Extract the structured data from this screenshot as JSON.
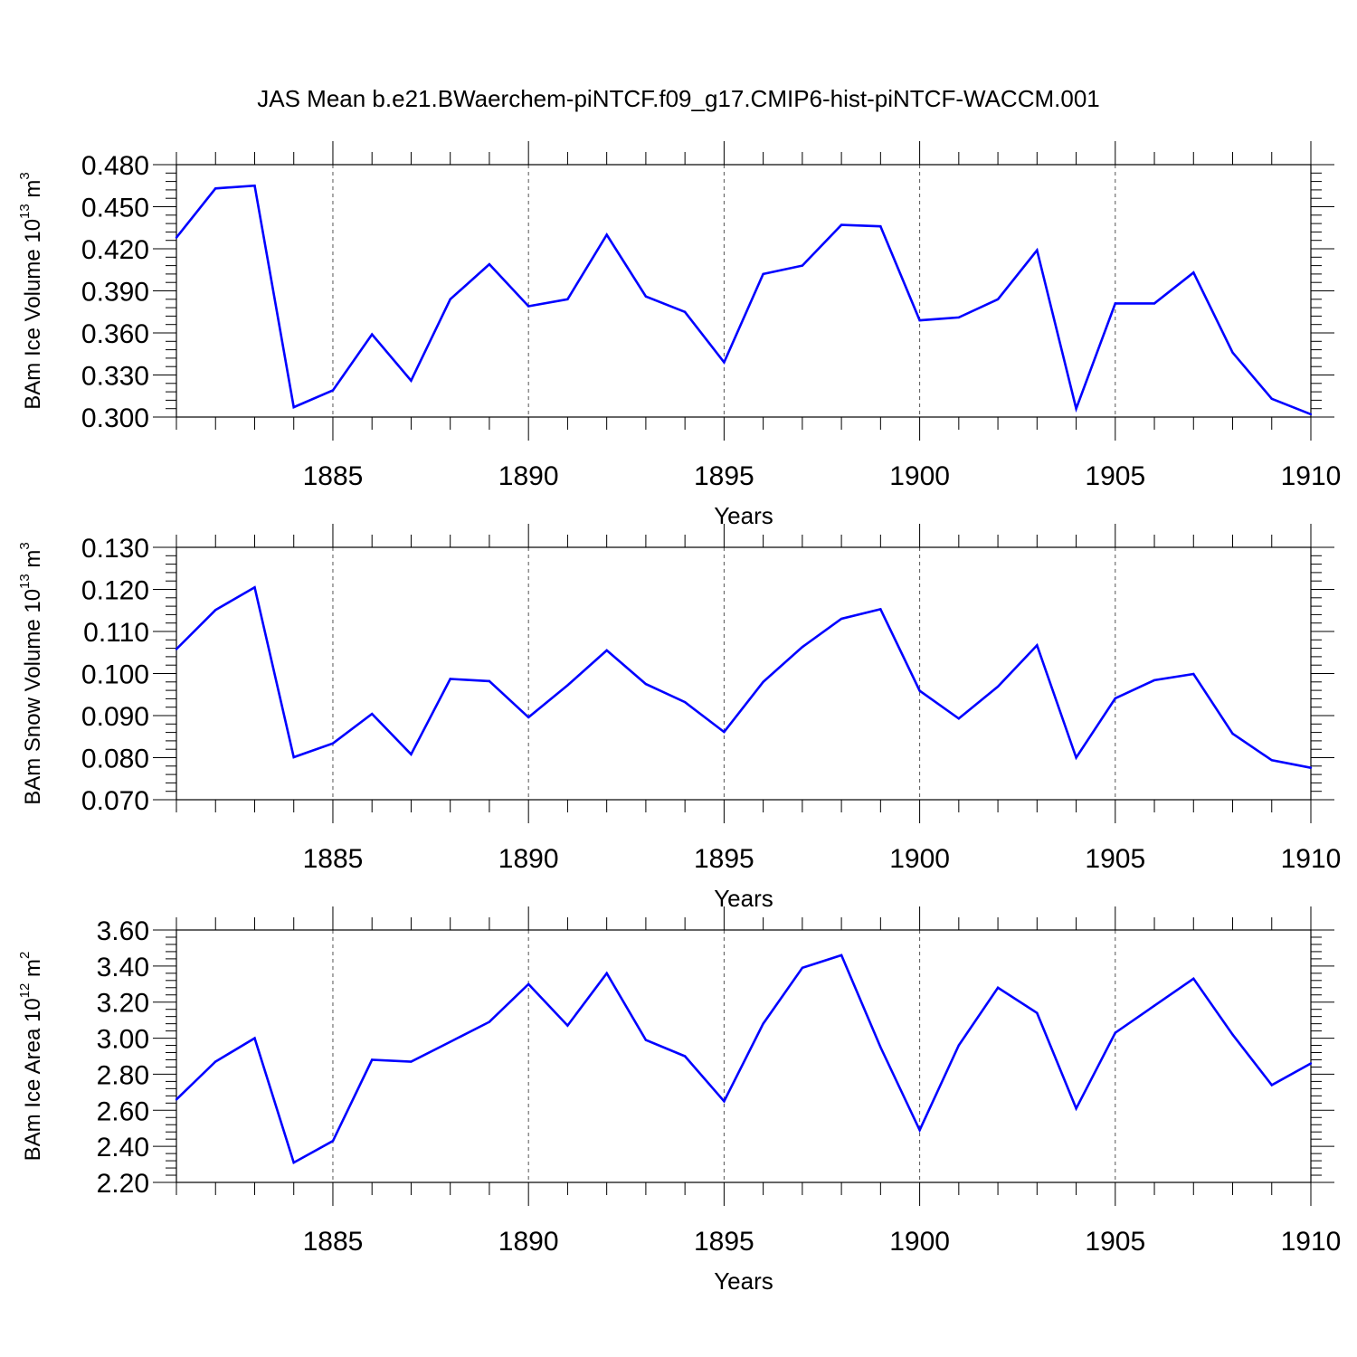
{
  "title": "JAS Mean b.e21.BWaerchem-piNTCF.f09_g17.CMIP6-hist-piNTCF-WACCM.001",
  "style": {
    "line_color": "#0000ff",
    "axis_color": "#000000",
    "grid_color": "#555555"
  },
  "chart_data": [
    {
      "type": "line",
      "name": "ice-volume",
      "title": "JAS Mean b.e21.BWaerchem-piNTCF.f09_g17.CMIP6-hist-piNTCF-WACCM.001",
      "xlabel": "Years",
      "ylabel": {
        "text": "BAm Ice Volume 10",
        "exp": "13",
        "unit": " m",
        "unit_exp": "3"
      },
      "xlim": [
        1881,
        1910
      ],
      "ylim": [
        0.3,
        0.48
      ],
      "yticks": [
        "0.300",
        "0.330",
        "0.360",
        "0.390",
        "0.420",
        "0.450",
        "0.480"
      ],
      "ytick_values": [
        0.3,
        0.33,
        0.36,
        0.39,
        0.42,
        0.45,
        0.48
      ],
      "xticks": [
        1885,
        1890,
        1895,
        1900,
        1905,
        1910
      ],
      "x": [
        1881,
        1882,
        1883,
        1884,
        1885,
        1886,
        1887,
        1888,
        1889,
        1890,
        1891,
        1892,
        1893,
        1894,
        1895,
        1896,
        1897,
        1898,
        1899,
        1900,
        1901,
        1902,
        1903,
        1904,
        1905,
        1906,
        1907,
        1908,
        1909,
        1910
      ],
      "values": [
        0.428,
        0.463,
        0.465,
        0.307,
        0.319,
        0.359,
        0.326,
        0.384,
        0.409,
        0.379,
        0.384,
        0.43,
        0.386,
        0.375,
        0.339,
        0.402,
        0.408,
        0.437,
        0.436,
        0.369,
        0.371,
        0.384,
        0.419,
        0.306,
        0.381,
        0.381,
        0.403,
        0.346,
        0.313,
        0.302
      ]
    },
    {
      "type": "line",
      "name": "snow-volume",
      "xlabel": "Years",
      "ylabel": {
        "text": "BAm Snow Volume 10",
        "exp": "13",
        "unit": " m",
        "unit_exp": "3"
      },
      "xlim": [
        1881,
        1910
      ],
      "ylim": [
        0.07,
        0.13
      ],
      "yticks": [
        "0.070",
        "0.080",
        "0.090",
        "0.100",
        "0.110",
        "0.120",
        "0.130"
      ],
      "ytick_values": [
        0.07,
        0.08,
        0.09,
        0.1,
        0.11,
        0.12,
        0.13
      ],
      "xticks": [
        1885,
        1890,
        1895,
        1900,
        1905,
        1910
      ],
      "x": [
        1881,
        1882,
        1883,
        1884,
        1885,
        1886,
        1887,
        1888,
        1889,
        1890,
        1891,
        1892,
        1893,
        1894,
        1895,
        1896,
        1897,
        1898,
        1899,
        1900,
        1901,
        1902,
        1903,
        1904,
        1905,
        1906,
        1907,
        1908,
        1909,
        1910
      ],
      "values": [
        0.1058,
        0.1151,
        0.1205,
        0.0801,
        0.0834,
        0.0904,
        0.0808,
        0.0987,
        0.0982,
        0.0896,
        0.0972,
        0.1055,
        0.0975,
        0.0932,
        0.0861,
        0.098,
        0.1063,
        0.113,
        0.1153,
        0.0959,
        0.0893,
        0.0969,
        0.1067,
        0.08,
        0.0941,
        0.0984,
        0.0999,
        0.0857,
        0.0794,
        0.0776
      ]
    },
    {
      "type": "line",
      "name": "ice-area",
      "xlabel": "Years",
      "ylabel": {
        "text": "BAm Ice Area 10",
        "exp": "12",
        "unit": " m",
        "unit_exp": "2"
      },
      "xlim": [
        1881,
        1910
      ],
      "ylim": [
        2.2,
        3.6
      ],
      "yticks": [
        "2.20",
        "2.40",
        "2.60",
        "2.80",
        "3.00",
        "3.20",
        "3.40",
        "3.60"
      ],
      "ytick_values": [
        2.2,
        2.4,
        2.6,
        2.8,
        3.0,
        3.2,
        3.4,
        3.6
      ],
      "xticks": [
        1885,
        1890,
        1895,
        1900,
        1905,
        1910
      ],
      "x": [
        1881,
        1882,
        1883,
        1884,
        1885,
        1886,
        1887,
        1888,
        1889,
        1890,
        1891,
        1892,
        1893,
        1894,
        1895,
        1896,
        1897,
        1898,
        1899,
        1900,
        1901,
        1902,
        1903,
        1904,
        1905,
        1906,
        1907,
        1908,
        1909,
        1910
      ],
      "values": [
        2.66,
        2.87,
        3.0,
        2.31,
        2.43,
        2.88,
        2.87,
        2.98,
        3.09,
        3.3,
        3.07,
        3.36,
        2.99,
        2.9,
        2.65,
        3.08,
        3.39,
        3.46,
        2.95,
        2.49,
        2.96,
        3.28,
        3.14,
        2.61,
        3.03,
        3.18,
        3.33,
        3.02,
        2.74,
        2.86
      ]
    }
  ]
}
